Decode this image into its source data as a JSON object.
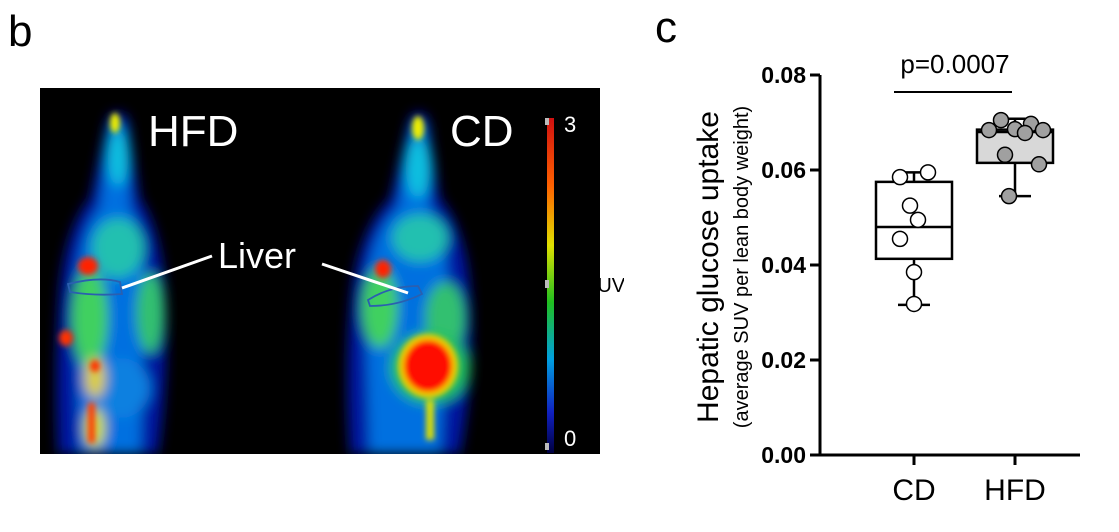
{
  "panels": {
    "b": "b",
    "c": "c"
  },
  "pet_image": {
    "labels": {
      "left": "HFD",
      "right": "CD",
      "liver": "Liver"
    },
    "colorbar": {
      "max": "3",
      "min": "0",
      "unit": "SUV"
    }
  },
  "chart_data": {
    "type": "box",
    "ylabel": "Hepatic glucose uptake",
    "ylabel2": "(average SUV per lean body weight)",
    "ylim": [
      0,
      0.08
    ],
    "yticks": [
      "0.00",
      "0.02",
      "0.04",
      "0.06",
      "0.08"
    ],
    "categories": [
      "CD",
      "HFD"
    ],
    "series": [
      {
        "category": "CD",
        "fill": "#ffffff",
        "box": {
          "min": 0.0316,
          "q1": 0.0413,
          "median": 0.048,
          "q3": 0.0575,
          "max": 0.0595
        },
        "points": [
          0.0595,
          0.0585,
          0.0525,
          0.0495,
          0.0455,
          0.0385,
          0.0318
        ]
      },
      {
        "category": "HFD",
        "fill": "#d8d8d8",
        "point_fill": "#a0a0a0",
        "box": {
          "min": 0.0545,
          "q1": 0.0615,
          "median": 0.068,
          "q3": 0.0685,
          "max": 0.0708
        },
        "points": [
          0.0705,
          0.0697,
          0.0686,
          0.0684,
          0.0684,
          0.0678,
          0.0632,
          0.0612,
          0.0545
        ]
      }
    ],
    "annotation": "p=0.0007",
    "colors": {
      "axis": "#000000",
      "hfd_box": "#d8d8d8",
      "hfd_points": "#a0a0a0"
    }
  }
}
